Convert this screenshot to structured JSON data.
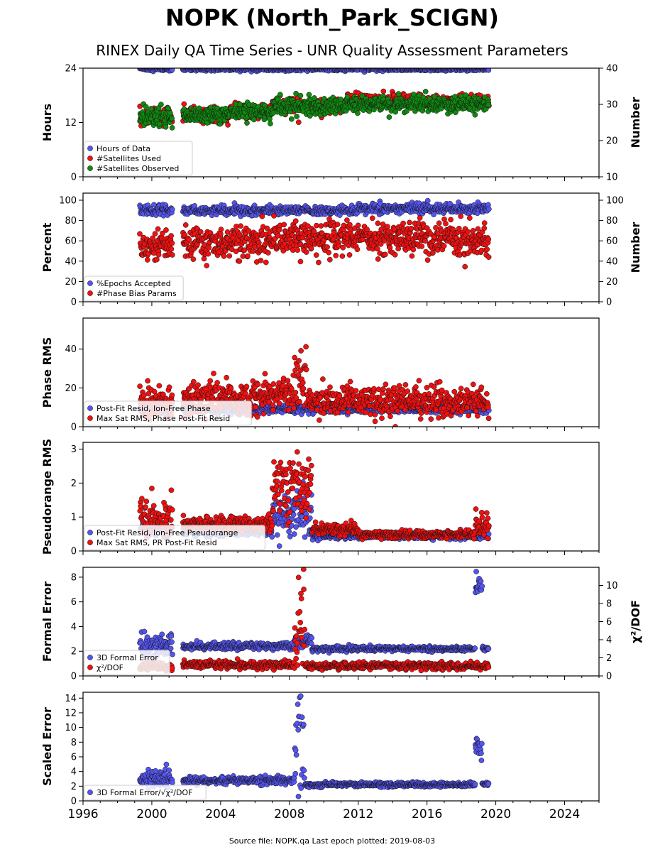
{
  "title": "NOPK (North_Park_SCIGN)",
  "subtitle": "RINEX Daily QA Time Series - UNR Quality Assessment Parameters",
  "footer": "Source file: NOPK.qa Last epoch plotted: 2019-08-03",
  "colors": {
    "blue": "#5555ee",
    "red": "#ee1111",
    "green": "#118811",
    "edge": "#111111"
  },
  "x_axis": {
    "xlim": [
      1996,
      2026
    ],
    "ticks": [
      1996,
      2000,
      2004,
      2008,
      2012,
      2016,
      2020,
      2024
    ],
    "tick_labels": [
      "1996",
      "2000",
      "2004",
      "2008",
      "2012",
      "2016",
      "2020",
      "2024"
    ]
  },
  "chart_data": [
    {
      "type": "scatter",
      "ylabel": "Hours",
      "ylim": [
        0,
        24
      ],
      "yticks": [
        0,
        12,
        24
      ],
      "ylabel_right": "Number",
      "ylim_right": [
        10,
        40
      ],
      "yticks_right": [
        10,
        20,
        30,
        40
      ],
      "legend": "lower-left",
      "series": [
        {
          "name": "Hours of Data",
          "color": "blue",
          "axis": "left",
          "segments": [
            [
              1999.3,
              2001.2,
              23.8,
              0.2
            ],
            [
              2001.8,
              2019.6,
              23.8,
              0.2
            ]
          ]
        },
        {
          "name": "#Satellites Used",
          "color": "red",
          "axis": "right",
          "segments": [
            [
              1999.3,
              2001.2,
              26.5,
              1.2
            ],
            [
              2001.8,
              2004.5,
              27.0,
              1.0
            ],
            [
              2004.5,
              2007.0,
              28.0,
              1.0
            ],
            [
              2007.0,
              2011.3,
              29.5,
              1.0
            ],
            [
              2011.3,
              2019.6,
              31.0,
              0.8
            ]
          ]
        },
        {
          "name": "#Satellites Observed",
          "color": "green",
          "axis": "right",
          "segments": [
            [
              1999.3,
              2001.2,
              26.5,
              1.3
            ],
            [
              2001.8,
              2004.5,
              27.0,
              1.2
            ],
            [
              2004.5,
              2007.0,
              28.0,
              1.2
            ],
            [
              2007.0,
              2011.3,
              29.5,
              1.2
            ],
            [
              2011.3,
              2019.6,
              30.0,
              1.0
            ]
          ]
        }
      ]
    },
    {
      "type": "scatter",
      "ylabel": "Percent",
      "ylim": [
        0,
        107
      ],
      "yticks": [
        0,
        20,
        40,
        60,
        80,
        100
      ],
      "ylabel_right": "Number",
      "ylim_right": [
        0,
        107
      ],
      "yticks_right": [
        0,
        20,
        40,
        60,
        80,
        100
      ],
      "legend": "lower-left",
      "series": [
        {
          "name": "%Epochs Accepted",
          "color": "blue",
          "axis": "left",
          "segments": [
            [
              1999.3,
              2001.2,
              90,
              2.5
            ],
            [
              2001.8,
              2012.0,
              90,
              2.0
            ],
            [
              2012.0,
              2019.6,
              92,
              2.5
            ]
          ]
        },
        {
          "name": "#Phase Bias Params",
          "color": "red",
          "axis": "left",
          "segments": [
            [
              1999.3,
              2001.2,
              56,
              7
            ],
            [
              2001.8,
              2007.0,
              58,
              8
            ],
            [
              2007.0,
              2013.0,
              64,
              8
            ],
            [
              2013.0,
              2019.6,
              61,
              8
            ]
          ]
        }
      ]
    },
    {
      "type": "scatter",
      "ylabel": "Phase RMS",
      "ylim": [
        0,
        56
      ],
      "yticks": [
        0,
        20,
        40
      ],
      "legend": "lower-left",
      "series": [
        {
          "name": "Post-Fit Resid, Ion-Free Phase",
          "color": "blue",
          "axis": "left",
          "segments": [
            [
              1999.3,
              2001.2,
              9,
              1.2
            ],
            [
              2001.8,
              2019.6,
              9,
              1.0
            ]
          ]
        },
        {
          "name": "Max Sat RMS, Phase Post-Fit Resid",
          "color": "red",
          "axis": "left",
          "segments": [
            [
              1999.3,
              2001.2,
              13,
              4
            ],
            [
              2001.8,
              2008.3,
              15,
              4
            ],
            [
              2008.3,
              2009.0,
              22,
              9
            ],
            [
              2009.0,
              2019.6,
              13,
              4
            ]
          ]
        }
      ]
    },
    {
      "type": "scatter",
      "ylabel": "Pseudorange RMS",
      "ylim": [
        0,
        3.2
      ],
      "yticks": [
        0,
        1,
        2,
        3
      ],
      "legend": "lower-left",
      "series": [
        {
          "name": "Post-Fit Resid, Ion-Free Pseudorange",
          "color": "blue",
          "axis": "left",
          "segments": [
            [
              1999.3,
              2001.2,
              0.6,
              0.1
            ],
            [
              2001.8,
              2007.0,
              0.55,
              0.05
            ],
            [
              2007.0,
              2009.3,
              1.1,
              0.35
            ],
            [
              2009.3,
              2019.6,
              0.45,
              0.05
            ]
          ]
        },
        {
          "name": "Max Sat RMS, PR Post-Fit Resid",
          "color": "red",
          "axis": "left",
          "segments": [
            [
              1999.3,
              2001.2,
              1.0,
              0.3
            ],
            [
              2001.8,
              2007.0,
              0.8,
              0.1
            ],
            [
              2007.0,
              2009.3,
              1.9,
              0.45
            ],
            [
              2009.3,
              2012.0,
              0.65,
              0.08
            ],
            [
              2012.0,
              2018.8,
              0.48,
              0.05
            ],
            [
              2018.8,
              2019.6,
              0.75,
              0.2
            ]
          ]
        }
      ]
    },
    {
      "type": "scatter",
      "ylabel": "Formal Error",
      "ylim": [
        0,
        8.8
      ],
      "yticks": [
        0,
        2,
        4,
        6,
        8
      ],
      "ylabel_right": "χ²/DOF",
      "ylim_right": [
        0,
        12
      ],
      "yticks_right": [
        0,
        2,
        4,
        6,
        8,
        10
      ],
      "legend": "lower-left",
      "series": [
        {
          "name": "3D Formal Error",
          "color": "blue",
          "axis": "left",
          "segments": [
            [
              1999.3,
              2001.2,
              2.5,
              0.5
            ],
            [
              2001.8,
              2008.3,
              2.4,
              0.15
            ],
            [
              2008.3,
              2009.3,
              2.8,
              0.3
            ],
            [
              2009.3,
              2018.8,
              2.2,
              0.1
            ],
            [
              2018.8,
              2019.2,
              7.3,
              0.6
            ],
            [
              2019.2,
              2019.6,
              2.2,
              0.1
            ]
          ]
        },
        {
          "name": "χ²/DOF",
          "color": "red",
          "axis": "right",
          "segments": [
            [
              1999.3,
              2001.2,
              1.0,
              0.2
            ],
            [
              2001.8,
              2008.3,
              1.2,
              0.2
            ],
            [
              2008.3,
              2008.9,
              4.5,
              2.5
            ],
            [
              2008.9,
              2019.6,
              1.1,
              0.2
            ]
          ]
        }
      ]
    },
    {
      "type": "scatter",
      "ylabel": "Scaled Error",
      "ylim": [
        0,
        14.8
      ],
      "yticks": [
        0,
        2,
        4,
        6,
        8,
        10,
        12,
        14
      ],
      "legend": "lower-left",
      "series": [
        {
          "name": "3D Formal Error/√χ²/DOF",
          "color": "blue",
          "axis": "left",
          "segments": [
            [
              1999.3,
              2001.2,
              3.0,
              0.6
            ],
            [
              2001.8,
              2008.3,
              2.8,
              0.25
            ],
            [
              2008.3,
              2008.9,
              8.0,
              4.5
            ],
            [
              2008.9,
              2018.8,
              2.2,
              0.15
            ],
            [
              2018.8,
              2019.2,
              7.5,
              0.8
            ],
            [
              2019.2,
              2019.6,
              2.3,
              0.1
            ]
          ]
        }
      ]
    }
  ]
}
